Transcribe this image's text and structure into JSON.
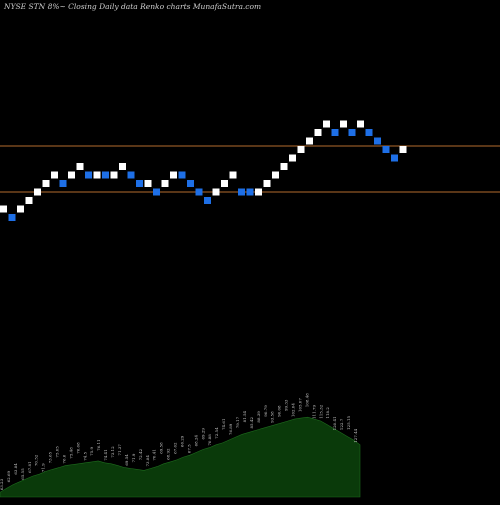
{
  "title": "NYSE STN  8%~  Closing Daily data  Renko  charts MunafaSutra.com",
  "chart_data": {
    "type": "renko",
    "title": "NYSE STN  8%~  Closing Daily data  Renko  charts MunafaSutra.com",
    "bricks": [
      {
        "dir": "up",
        "level": 3
      },
      {
        "dir": "down",
        "level": 2
      },
      {
        "dir": "up",
        "level": 3
      },
      {
        "dir": "up",
        "level": 4
      },
      {
        "dir": "up",
        "level": 5
      },
      {
        "dir": "up",
        "level": 6
      },
      {
        "dir": "up",
        "level": 7
      },
      {
        "dir": "down",
        "level": 6
      },
      {
        "dir": "up",
        "level": 7
      },
      {
        "dir": "up",
        "level": 8
      },
      {
        "dir": "down",
        "level": 7
      },
      {
        "dir": "up",
        "level": 7
      },
      {
        "dir": "down",
        "level": 7
      },
      {
        "dir": "up",
        "level": 7
      },
      {
        "dir": "up",
        "level": 8
      },
      {
        "dir": "down",
        "level": 7
      },
      {
        "dir": "down",
        "level": 6
      },
      {
        "dir": "up",
        "level": 6
      },
      {
        "dir": "down",
        "level": 5
      },
      {
        "dir": "up",
        "level": 6
      },
      {
        "dir": "up",
        "level": 7
      },
      {
        "dir": "down",
        "level": 7
      },
      {
        "dir": "down",
        "level": 6
      },
      {
        "dir": "down",
        "level": 5
      },
      {
        "dir": "down",
        "level": 4
      },
      {
        "dir": "up",
        "level": 5
      },
      {
        "dir": "up",
        "level": 6
      },
      {
        "dir": "up",
        "level": 7
      },
      {
        "dir": "down",
        "level": 5
      },
      {
        "dir": "down",
        "level": 5
      },
      {
        "dir": "up",
        "level": 5
      },
      {
        "dir": "up",
        "level": 6
      },
      {
        "dir": "up",
        "level": 7
      },
      {
        "dir": "up",
        "level": 8
      },
      {
        "dir": "up",
        "level": 9
      },
      {
        "dir": "up",
        "level": 10
      },
      {
        "dir": "up",
        "level": 11
      },
      {
        "dir": "up",
        "level": 12
      },
      {
        "dir": "up",
        "level": 13
      },
      {
        "dir": "down",
        "level": 12
      },
      {
        "dir": "up",
        "level": 13
      },
      {
        "dir": "down",
        "level": 12
      },
      {
        "dir": "up",
        "level": 13
      },
      {
        "dir": "down",
        "level": 12
      },
      {
        "dir": "down",
        "level": 11
      },
      {
        "dir": "down",
        "level": 10
      },
      {
        "dir": "down",
        "level": 9
      },
      {
        "dir": "up",
        "level": 10
      }
    ],
    "reference_lines": [
      "upper",
      "lower"
    ],
    "volume_labels": [
      "63.23",
      "62.69",
      "63.84",
      "65.55",
      "67.81",
      "70.52",
      "71.9",
      "73.65",
      "75.05",
      "76.6",
      "75.48",
      "76.68",
      "74.5",
      "75.9",
      "76.11",
      "74.41",
      "73.12",
      "71.37",
      "69.54",
      "71.9",
      "72.42",
      "73.84",
      "70.41",
      "69.58",
      "68.92",
      "67.62",
      "66.29",
      "67.5",
      "68.24",
      "69.29",
      "70.88",
      "72.54",
      "74.61",
      "76.89",
      "79.17",
      "81.54",
      "85.42",
      "88.39",
      "90.79",
      "93.58",
      "96.08",
      "99.33",
      "102.04",
      "105.07",
      "108.48",
      "111.79",
      "115.32",
      "118.2",
      "120.41",
      "122.7",
      "125.15",
      "127.44"
    ],
    "volume_profile": [
      0.05,
      0.09,
      0.13,
      0.16,
      0.19,
      0.22,
      0.24,
      0.27,
      0.29,
      0.31,
      0.33,
      0.34,
      0.35,
      0.36,
      0.37,
      0.38,
      0.36,
      0.35,
      0.33,
      0.31,
      0.3,
      0.29,
      0.28,
      0.3,
      0.32,
      0.35,
      0.37,
      0.39,
      0.42,
      0.44,
      0.47,
      0.5,
      0.52,
      0.55,
      0.57,
      0.6,
      0.63,
      0.66,
      0.68,
      0.7,
      0.72,
      0.74,
      0.76,
      0.78,
      0.8,
      0.82,
      0.83,
      0.84,
      0.82,
      0.8,
      0.76,
      0.72,
      0.68,
      0.64,
      0.6,
      0.55
    ],
    "colors": {
      "background": "#000000",
      "up_brick": "#ffffff",
      "down_brick": "#1e6fe6",
      "reference_line": "#b36b2e",
      "volume_fill": "#0a3a0a",
      "label": "#cfcfcf"
    }
  }
}
